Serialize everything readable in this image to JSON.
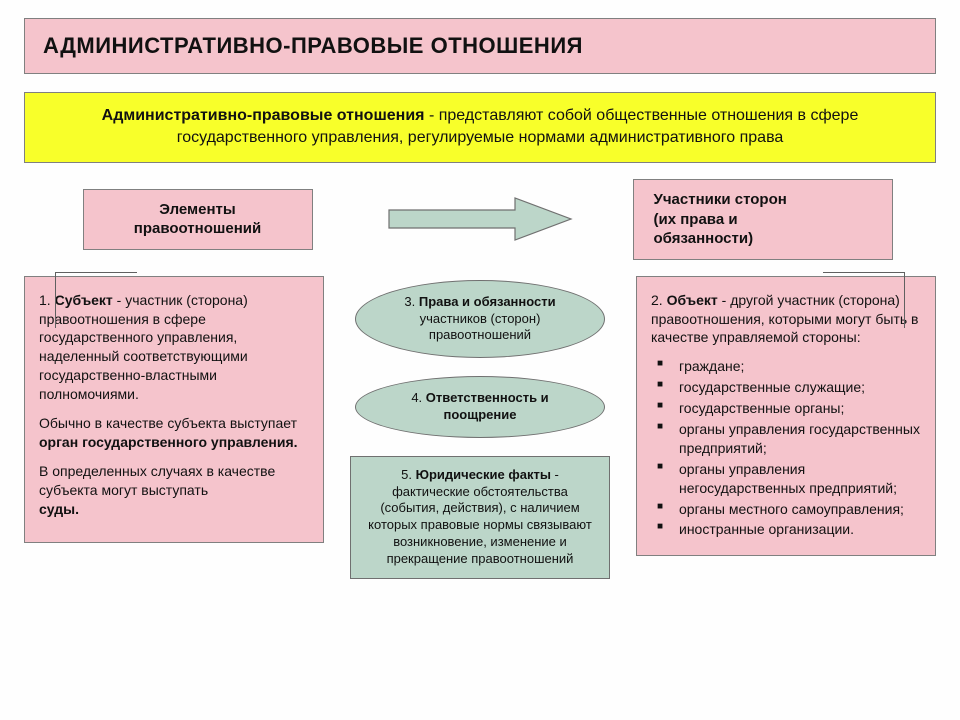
{
  "colors": {
    "pink": "#f5c4cc",
    "yellow": "#f8ff2a",
    "green": "#bcd6c9",
    "border": "#808080",
    "arrow_fill": "#bcd6c9",
    "arrow_stroke": "#707070"
  },
  "title": "АДМИНИСТРАТИВНО-ПРАВОВЫЕ ОТНОШЕНИЯ",
  "definition": {
    "term": "Административно-правовые отношения",
    "rest": " - представляют собой общественные отношения в сфере государственного управления, регулируемые нормами административного права"
  },
  "mid": {
    "left": "Элементы\nправоотношений",
    "right": "Участники сторон\n(их права и\nобязанности)"
  },
  "subject": {
    "lead_bold": "Субъект",
    "lead_num": "1. ",
    "lead_rest": " - участник (сторона) правоотношения в сфере государственного управления, наделенный соответствующими государственно-властными полномочиями.",
    "p2a": "Обычно в качестве субъекта выступает ",
    "p2b": "орган государственного управления.",
    "p3a": "В определенных случаях в качестве субъекта могут выступать ",
    "p3b": "суды."
  },
  "object": {
    "lead_num": "2. ",
    "lead_bold": "Объект",
    "lead_rest": " - другой участник (сторона) правоотношения, которыми могут быть в качестве управляемой стороны:",
    "items": [
      "граждане;",
      "государственные служащие;",
      "государственные органы;",
      "органы управления государственных предприятий;",
      "органы управления негосударственных предприятий;",
      "органы местного само­управления;",
      "иностранные организации."
    ]
  },
  "center": {
    "el3_num": "3. ",
    "el3_bold": "Права и обязанности",
    "el3_rest": " участников (сторон) правоотношений",
    "el4_num": "4. ",
    "el4_bold": "Ответственность и поощрение",
    "el5_num": "5. ",
    "el5_bold": "Юридические факты",
    "el5_rest": " - фактические обстоятельства (события, действия), с наличием которых правовые нормы связывают возникновение, изменение и прекращение правоотношений"
  },
  "arrow": {
    "width": 190,
    "height": 46
  }
}
